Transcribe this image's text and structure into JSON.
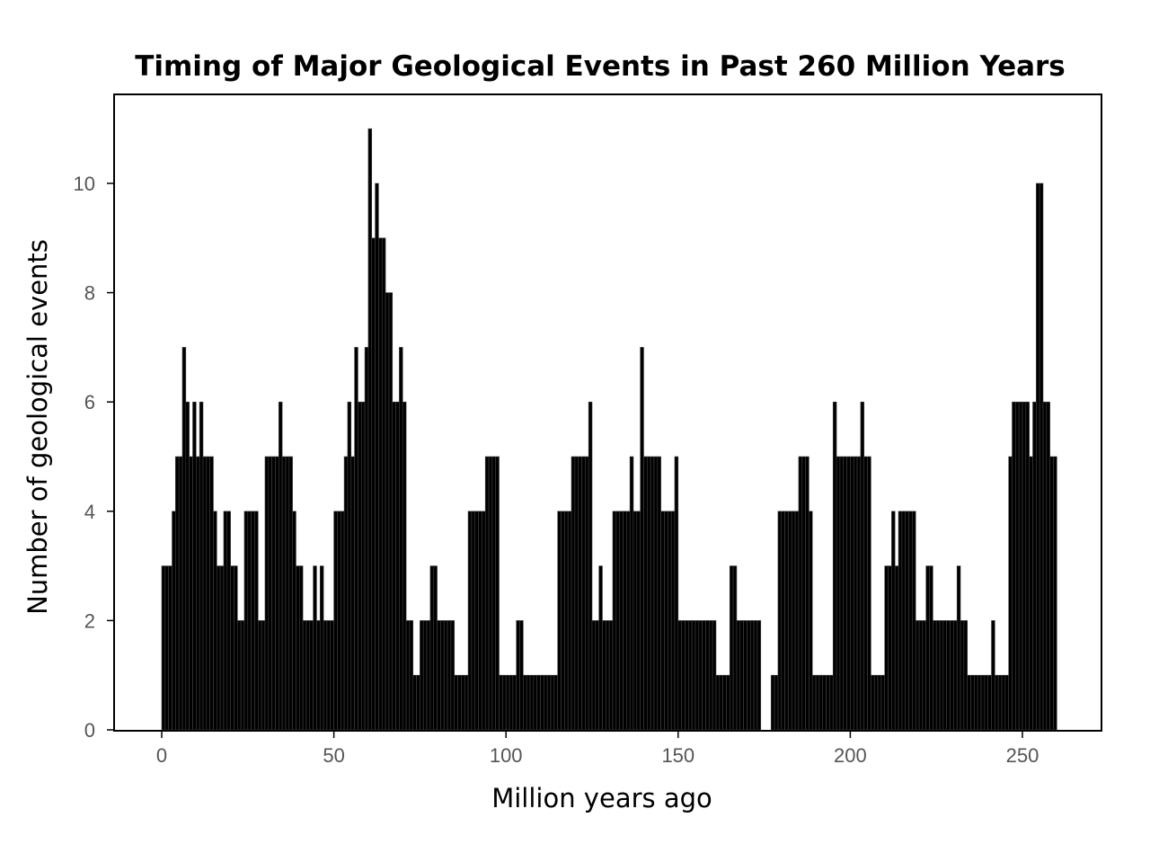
{
  "chart_data": {
    "type": "bar",
    "title": "Timing of Major Geological Events in Past 260 Million Years",
    "xlabel": "Million years ago",
    "ylabel": "Number of geological events",
    "xlim": [
      0,
      260
    ],
    "ylim": [
      0,
      11.5
    ],
    "xticks": [
      0,
      50,
      100,
      150,
      200,
      250
    ],
    "yticks": [
      0,
      2,
      4,
      6,
      8,
      10
    ],
    "grid": false,
    "legend": "none",
    "bar_color": "#000000",
    "bin_width": 1,
    "x_start": 0,
    "values": [
      3,
      3,
      3,
      4,
      5,
      5,
      7,
      6,
      5,
      6,
      5,
      6,
      5,
      5,
      5,
      4,
      3,
      3,
      4,
      4,
      3,
      3,
      2,
      2,
      4,
      4,
      4,
      4,
      2,
      2,
      5,
      5,
      5,
      5,
      6,
      5,
      5,
      5,
      4,
      3,
      3,
      2,
      2,
      2,
      3,
      2,
      3,
      2,
      2,
      2,
      4,
      4,
      4,
      5,
      6,
      5,
      7,
      6,
      6,
      7,
      11,
      9,
      10,
      9,
      9,
      8,
      8,
      6,
      6,
      7,
      6,
      2,
      2,
      1,
      1,
      2,
      2,
      2,
      3,
      3,
      2,
      2,
      2,
      2,
      2,
      1,
      1,
      1,
      1,
      4,
      4,
      4,
      4,
      4,
      5,
      5,
      5,
      5,
      1,
      1,
      1,
      1,
      1,
      2,
      2,
      1,
      1,
      1,
      1,
      1,
      1,
      1,
      1,
      1,
      1,
      4,
      4,
      4,
      4,
      5,
      5,
      5,
      5,
      5,
      6,
      2,
      2,
      3,
      2,
      2,
      2,
      4,
      4,
      4,
      4,
      4,
      5,
      4,
      4,
      7,
      5,
      5,
      5,
      5,
      5,
      4,
      4,
      4,
      4,
      5,
      2,
      2,
      2,
      2,
      2,
      2,
      2,
      2,
      2,
      2,
      2,
      1,
      1,
      1,
      1,
      3,
      3,
      2,
      2,
      2,
      2,
      2,
      2,
      2,
      0,
      0,
      0,
      1,
      1,
      4,
      4,
      4,
      4,
      4,
      4,
      5,
      5,
      5,
      4,
      1,
      1,
      1,
      1,
      1,
      1,
      6,
      5,
      5,
      5,
      5,
      5,
      5,
      5,
      6,
      5,
      5,
      1,
      1,
      1,
      1,
      3,
      3,
      4,
      3,
      4,
      4,
      4,
      4,
      4,
      2,
      2,
      2,
      3,
      3,
      2,
      2,
      2,
      2,
      2,
      2,
      2,
      3,
      2,
      2,
      1,
      1,
      1,
      1,
      1,
      1,
      1,
      2,
      1,
      1,
      1,
      1,
      5,
      6,
      6,
      6,
      6,
      6,
      5,
      6,
      10,
      10,
      6,
      6,
      5,
      5
    ]
  }
}
